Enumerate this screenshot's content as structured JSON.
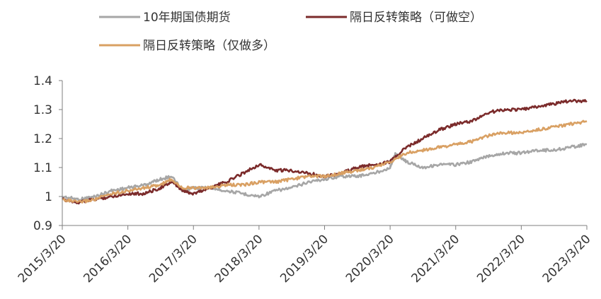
{
  "chart_data": {
    "type": "line",
    "title": "",
    "xlabel": "",
    "ylabel": "",
    "ylim": [
      0.9,
      1.4
    ],
    "yticks": [
      "0.9",
      "1",
      "1.1",
      "1.2",
      "1.3",
      "1.4"
    ],
    "xticks": [
      "2015/3/20",
      "2016/3/20",
      "2017/3/20",
      "2018/3/20",
      "2019/3/20",
      "2020/3/20",
      "2021/3/20",
      "2022/3/20",
      "2023/3/20"
    ],
    "grid": false,
    "legend": {
      "placement": "top",
      "entries": [
        "10年期国债期货",
        "隔日反转策略（可做空）",
        "隔日反转策略（仅做多）"
      ]
    },
    "series": [
      {
        "name": "10年期国债期货",
        "color": "#a6a6a6",
        "x": [
          "2015/3/20",
          "2015/6/20",
          "2015/9/20",
          "2015/12/20",
          "2016/3/20",
          "2016/6/20",
          "2016/9/20",
          "2016/11/20",
          "2017/1/20",
          "2017/3/20",
          "2017/6/20",
          "2017/9/20",
          "2017/12/20",
          "2018/3/20",
          "2018/6/20",
          "2018/9/20",
          "2018/12/20",
          "2019/3/20",
          "2019/6/20",
          "2019/9/20",
          "2019/12/20",
          "2020/3/20",
          "2020/4/20",
          "2020/6/20",
          "2020/9/20",
          "2020/12/20",
          "2021/3/20",
          "2021/6/20",
          "2021/9/20",
          "2021/12/20",
          "2022/3/20",
          "2022/6/20",
          "2022/9/20",
          "2022/12/20",
          "2023/3/20"
        ],
        "values": [
          1.0,
          0.99,
          1.0,
          1.02,
          1.03,
          1.04,
          1.06,
          1.07,
          1.02,
          1.03,
          1.03,
          1.02,
          1.01,
          1.0,
          1.02,
          1.03,
          1.05,
          1.06,
          1.07,
          1.07,
          1.08,
          1.1,
          1.15,
          1.12,
          1.1,
          1.11,
          1.11,
          1.12,
          1.14,
          1.15,
          1.15,
          1.16,
          1.16,
          1.17,
          1.18
        ]
      },
      {
        "name": "隔日反转策略（可做空）",
        "color": "#7b2b2b",
        "x": [
          "2015/3/20",
          "2015/6/20",
          "2015/9/20",
          "2015/12/20",
          "2016/3/20",
          "2016/6/20",
          "2016/9/20",
          "2016/11/20",
          "2017/1/20",
          "2017/3/20",
          "2017/6/20",
          "2017/9/20",
          "2017/12/20",
          "2018/3/20",
          "2018/6/20",
          "2018/9/20",
          "2018/12/20",
          "2019/3/20",
          "2019/6/20",
          "2019/9/20",
          "2019/12/20",
          "2020/3/20",
          "2020/6/20",
          "2020/9/20",
          "2020/12/20",
          "2021/3/20",
          "2021/6/20",
          "2021/9/20",
          "2021/12/20",
          "2022/3/20",
          "2022/6/20",
          "2022/9/20",
          "2022/12/20",
          "2023/3/20"
        ],
        "values": [
          0.99,
          0.98,
          0.99,
          1.0,
          1.01,
          1.01,
          1.03,
          1.05,
          1.02,
          1.01,
          1.03,
          1.05,
          1.08,
          1.11,
          1.09,
          1.09,
          1.08,
          1.07,
          1.08,
          1.1,
          1.11,
          1.12,
          1.17,
          1.2,
          1.23,
          1.25,
          1.26,
          1.29,
          1.3,
          1.3,
          1.31,
          1.32,
          1.33,
          1.33
        ]
      },
      {
        "name": "隔日反转策略（仅做多）",
        "color": "#d9a063",
        "x": [
          "2015/3/20",
          "2015/6/20",
          "2015/9/20",
          "2015/12/20",
          "2016/3/20",
          "2016/6/20",
          "2016/9/20",
          "2016/11/20",
          "2017/1/20",
          "2017/3/20",
          "2017/6/20",
          "2017/9/20",
          "2017/12/20",
          "2018/3/20",
          "2018/6/20",
          "2018/9/20",
          "2018/12/20",
          "2019/3/20",
          "2019/6/20",
          "2019/9/20",
          "2019/12/20",
          "2020/3/20",
          "2020/6/20",
          "2020/9/20",
          "2020/12/20",
          "2021/3/20",
          "2021/6/20",
          "2021/9/20",
          "2021/12/20",
          "2022/3/20",
          "2022/6/20",
          "2022/9/20",
          "2022/12/20",
          "2023/3/20"
        ],
        "values": [
          0.99,
          0.98,
          0.99,
          1.01,
          1.02,
          1.03,
          1.04,
          1.06,
          1.03,
          1.03,
          1.03,
          1.04,
          1.04,
          1.05,
          1.05,
          1.06,
          1.07,
          1.07,
          1.08,
          1.09,
          1.1,
          1.12,
          1.15,
          1.16,
          1.17,
          1.18,
          1.19,
          1.21,
          1.22,
          1.22,
          1.23,
          1.24,
          1.25,
          1.26
        ]
      }
    ]
  }
}
